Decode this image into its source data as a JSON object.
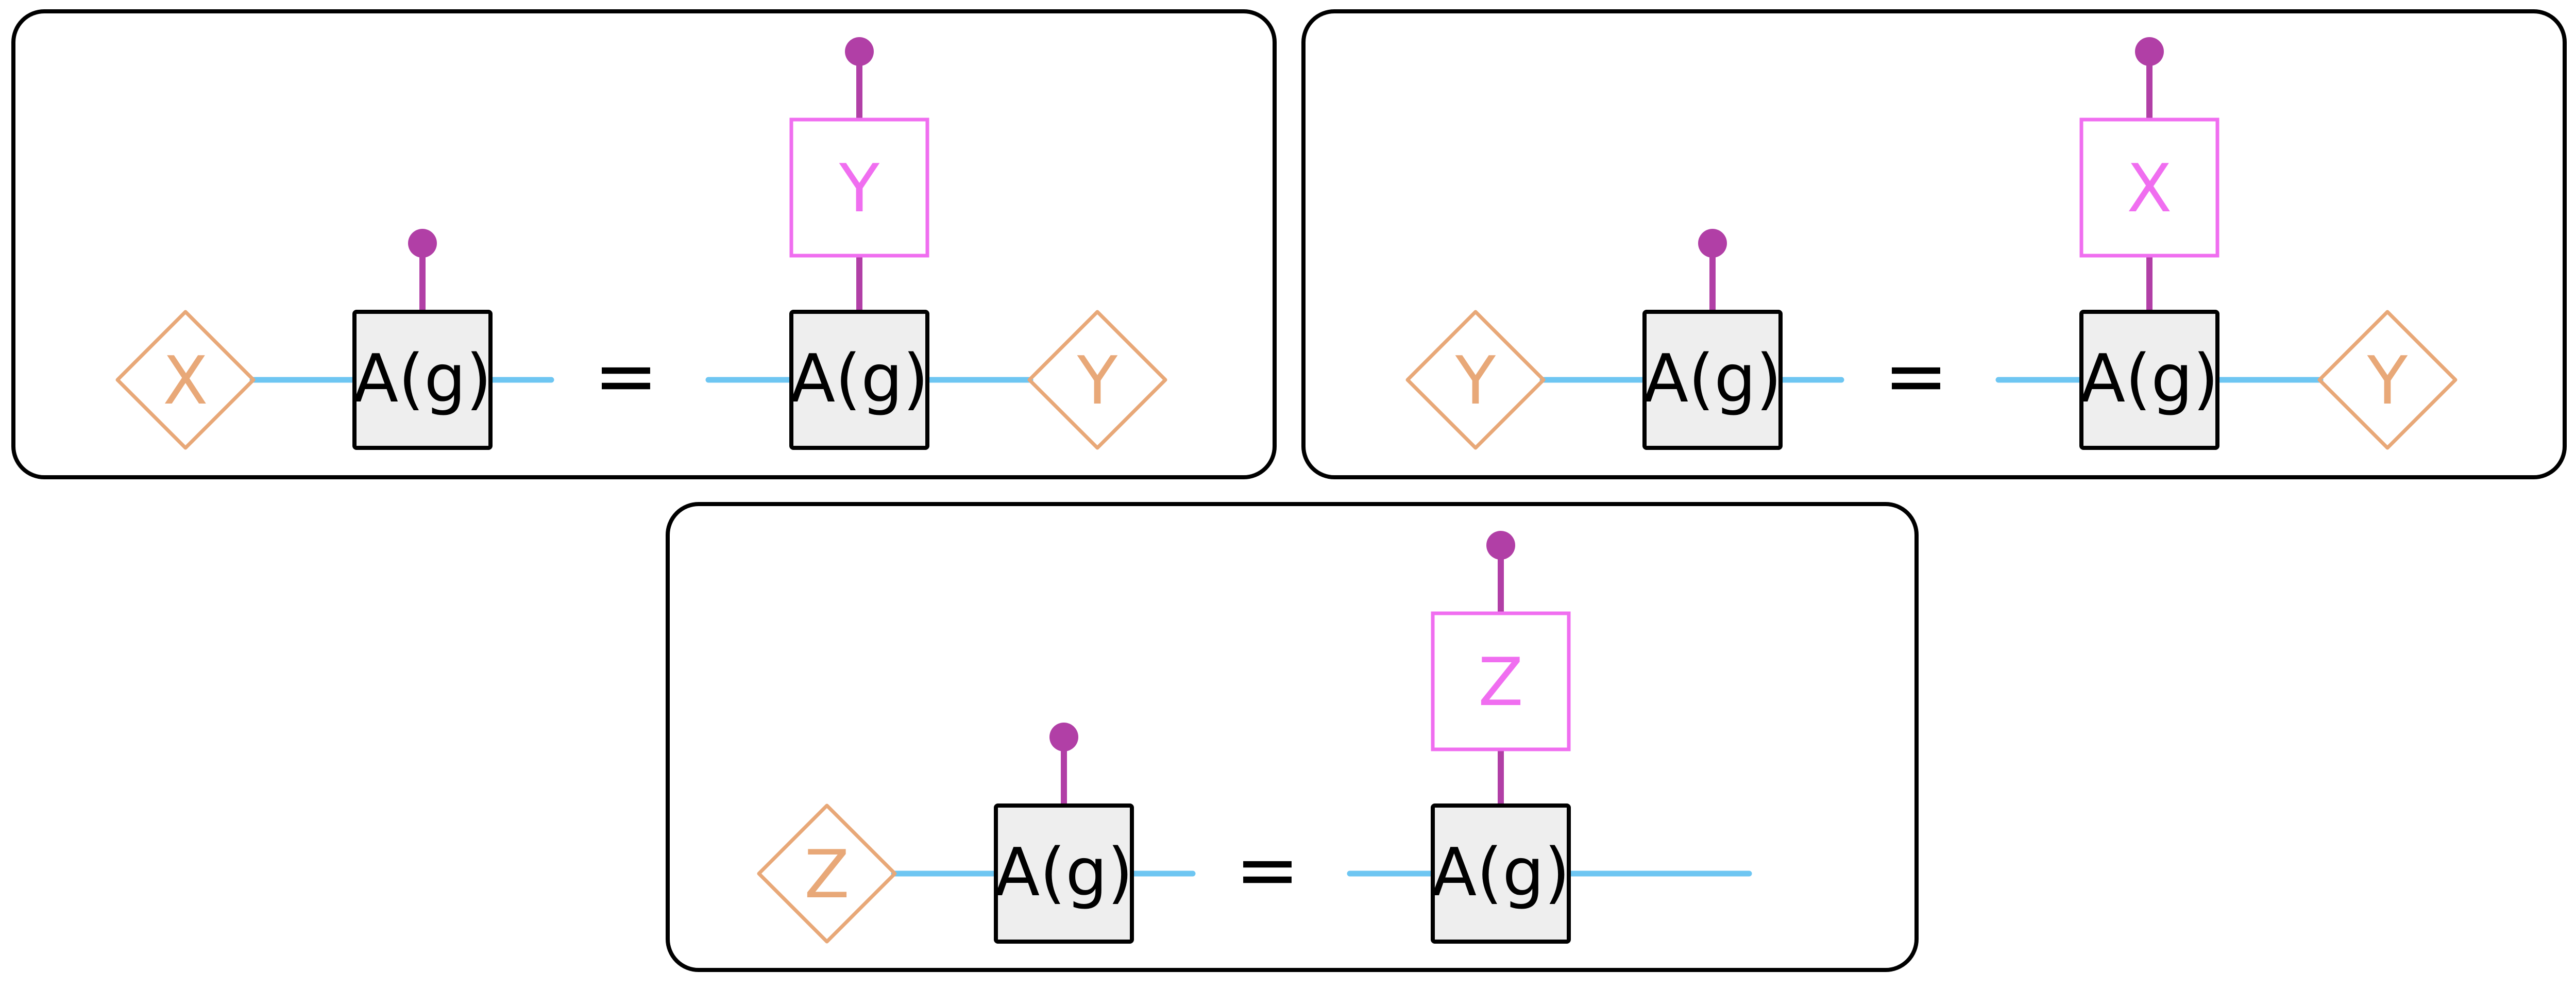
{
  "colors": {
    "panel_stroke": "#000000",
    "wire": "#6ec6f2",
    "leg": "#b13fa6",
    "tensor_fill": "#eeeeee",
    "tensor_stroke": "#000000",
    "pauli_out_stroke": "#f06ef0",
    "pauli_out_text": "#f06ef0",
    "pauli_in_stroke": "#e8a878",
    "pauli_in_text": "#e8a878"
  },
  "equation_symbol": "=",
  "panels": [
    {
      "id": "x-panel",
      "left": {
        "input_pauli": "X",
        "tensor": "A(g)"
      },
      "right": {
        "output_pauli": "Y",
        "tensor": "A(g)",
        "input_pauli": "Y"
      }
    },
    {
      "id": "y-panel",
      "left": {
        "input_pauli": "Y",
        "tensor": "A(g)"
      },
      "right": {
        "output_pauli": "X",
        "tensor": "A(g)",
        "input_pauli": "Y"
      }
    },
    {
      "id": "z-panel",
      "left": {
        "input_pauli": "Z",
        "tensor": "A(g)"
      },
      "right": {
        "output_pauli": "Z",
        "tensor": "A(g)",
        "input_pauli": ""
      }
    }
  ]
}
